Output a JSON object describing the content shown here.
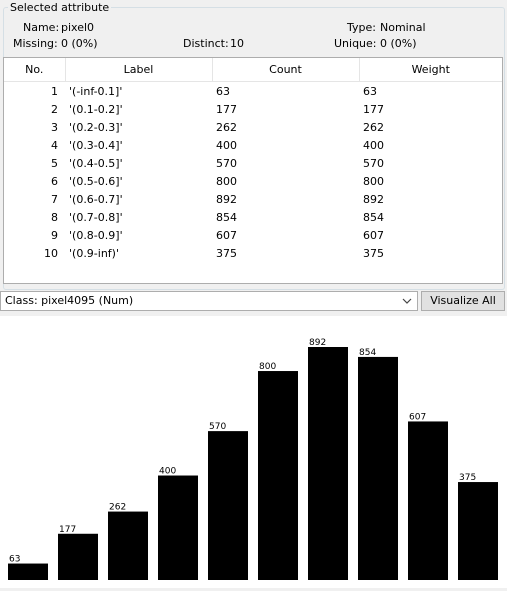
{
  "selected_attribute": {
    "title": "Selected attribute",
    "name_label": "Name:",
    "name_value": "pixel0",
    "type_label": "Type:",
    "type_value": "Nominal",
    "missing_label": "Missing:",
    "missing_value": "0 (0%)",
    "distinct_label": "Distinct:",
    "distinct_value": "10",
    "unique_label": "Unique:",
    "unique_value": "0 (0%)"
  },
  "table": {
    "headers": [
      "No.",
      "Label",
      "Count",
      "Weight"
    ],
    "rows": [
      {
        "no": "1",
        "label": "'(-inf-0.1]'",
        "count": "63",
        "weight": "63"
      },
      {
        "no": "2",
        "label": "'(0.1-0.2]'",
        "count": "177",
        "weight": "177"
      },
      {
        "no": "3",
        "label": "'(0.2-0.3]'",
        "count": "262",
        "weight": "262"
      },
      {
        "no": "4",
        "label": "'(0.3-0.4]'",
        "count": "400",
        "weight": "400"
      },
      {
        "no": "5",
        "label": "'(0.4-0.5]'",
        "count": "570",
        "weight": "570"
      },
      {
        "no": "6",
        "label": "'(0.5-0.6]'",
        "count": "800",
        "weight": "800"
      },
      {
        "no": "7",
        "label": "'(0.6-0.7]'",
        "count": "892",
        "weight": "892"
      },
      {
        "no": "8",
        "label": "'(0.7-0.8]'",
        "count": "854",
        "weight": "854"
      },
      {
        "no": "9",
        "label": "'(0.8-0.9]'",
        "count": "607",
        "weight": "607"
      },
      {
        "no": "10",
        "label": "'(0.9-inf)'",
        "count": "375",
        "weight": "375"
      }
    ]
  },
  "class_selector": {
    "value": "Class: pixel4095 (Num)",
    "icon": "chevron-down-icon"
  },
  "visualize_all_label": "Visualize All",
  "chart_data": {
    "type": "bar",
    "categories": [
      "'(-inf-0.1]'",
      "'(0.1-0.2]'",
      "'(0.2-0.3]'",
      "'(0.3-0.4]'",
      "'(0.4-0.5]'",
      "'(0.5-0.6]'",
      "'(0.6-0.7]'",
      "'(0.7-0.8]'",
      "'(0.8-0.9]'",
      "'(0.9-inf)'"
    ],
    "values": [
      63,
      177,
      262,
      400,
      570,
      800,
      892,
      854,
      607,
      375
    ],
    "ylim": [
      0,
      892
    ],
    "bar_color": "#000000"
  }
}
